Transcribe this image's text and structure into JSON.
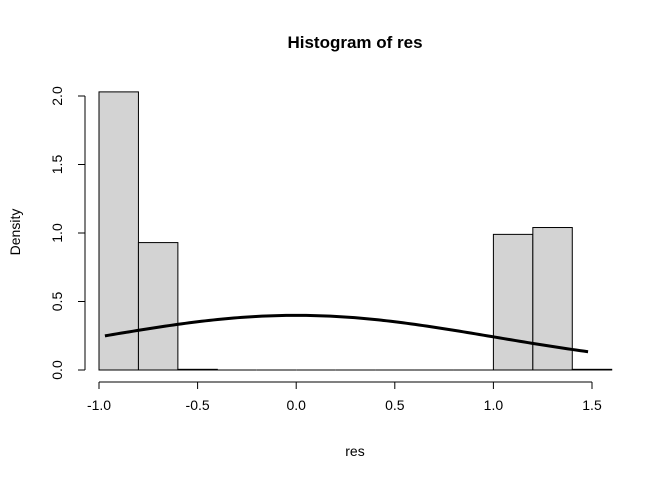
{
  "chart_data": {
    "type": "bar",
    "title": "Histogram of res",
    "xlabel": "res",
    "ylabel": "Density",
    "xlim": [
      -1.0,
      1.6
    ],
    "ylim": [
      0,
      2.0
    ],
    "x_ticks": [
      "-1.0",
      "-0.5",
      "0.0",
      "0.5",
      "1.0",
      "1.5"
    ],
    "y_ticks": [
      "0.0",
      "0.5",
      "1.0",
      "1.5",
      "2.0"
    ],
    "bins": [
      {
        "x0": -1.0,
        "x1": -0.8,
        "density": 2.03
      },
      {
        "x0": -0.8,
        "x1": -0.6,
        "density": 0.93
      },
      {
        "x0": -0.6,
        "x1": -0.4,
        "density": 0.005
      },
      {
        "x0": -0.4,
        "x1": -0.2,
        "density": 0.0
      },
      {
        "x0": -0.2,
        "x1": 0.0,
        "density": 0.0
      },
      {
        "x0": 0.0,
        "x1": 0.2,
        "density": 0.0
      },
      {
        "x0": 0.2,
        "x1": 0.4,
        "density": 0.0
      },
      {
        "x0": 0.4,
        "x1": 0.6,
        "density": 0.0
      },
      {
        "x0": 0.6,
        "x1": 0.8,
        "density": 0.0
      },
      {
        "x0": 0.8,
        "x1": 1.0,
        "density": 0.0
      },
      {
        "x0": 1.0,
        "x1": 1.2,
        "density": 0.99
      },
      {
        "x0": 1.2,
        "x1": 1.4,
        "density": 1.04
      },
      {
        "x0": 1.4,
        "x1": 1.6,
        "density": 0.005
      }
    ],
    "curve": {
      "kind": "normal-density",
      "mean": 0.0,
      "sd": 1.0,
      "x_range": [
        -0.97,
        1.48
      ]
    },
    "grid": false,
    "colors": {
      "bar_fill": "#d3d3d3",
      "bar_stroke": "#000000",
      "curve": "#000000"
    }
  }
}
